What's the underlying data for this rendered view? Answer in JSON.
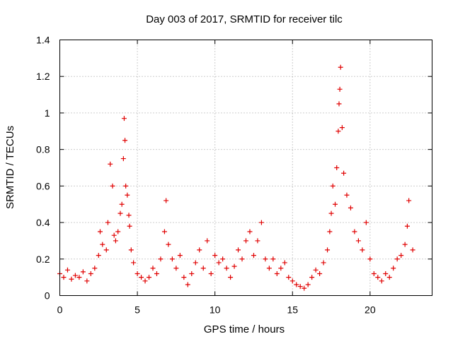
{
  "chart_data": {
    "type": "scatter",
    "title": "Day 003 of 2017, SRMTID for receiver tilc",
    "xlabel": "GPS time / hours",
    "ylabel": "SRMTID / TECUs",
    "xlim": [
      0,
      24
    ],
    "ylim": [
      0,
      1.4
    ],
    "xticks": [
      0,
      5,
      10,
      15,
      20
    ],
    "xtick_labels": [
      "0",
      "5",
      "10",
      "15",
      "20"
    ],
    "yticks": [
      0,
      0.2,
      0.4,
      0.6,
      0.8,
      1.0,
      1.2,
      1.4
    ],
    "ytick_labels": [
      "0",
      "0.2",
      "0.4",
      "0.6",
      "0.8",
      "1",
      "1.2",
      "1.4"
    ],
    "grid": true,
    "marker": "+",
    "series": [
      {
        "name": "SRMTID",
        "color": "#e00000",
        "x": [
          0.0,
          0.25,
          0.5,
          0.75,
          1.0,
          1.25,
          1.5,
          1.75,
          2.0,
          2.25,
          2.5,
          2.6,
          2.75,
          3.0,
          3.1,
          3.25,
          3.4,
          3.5,
          3.6,
          3.75,
          3.9,
          4.0,
          4.1,
          4.15,
          4.2,
          4.25,
          4.35,
          4.45,
          4.5,
          4.6,
          4.75,
          5.0,
          5.25,
          5.5,
          5.75,
          6.0,
          6.25,
          6.5,
          6.75,
          6.85,
          7.0,
          7.25,
          7.5,
          7.75,
          8.0,
          8.25,
          8.5,
          8.75,
          9.0,
          9.25,
          9.5,
          9.75,
          10.0,
          10.25,
          10.5,
          10.75,
          11.0,
          11.25,
          11.5,
          11.75,
          12.0,
          12.25,
          12.5,
          12.75,
          13.0,
          13.25,
          13.5,
          13.75,
          14.0,
          14.25,
          14.5,
          14.75,
          15.0,
          15.25,
          15.5,
          15.75,
          16.0,
          16.25,
          16.5,
          16.75,
          17.0,
          17.25,
          17.4,
          17.5,
          17.6,
          17.75,
          17.85,
          17.95,
          18.0,
          18.05,
          18.1,
          18.2,
          18.3,
          18.5,
          18.75,
          19.0,
          19.25,
          19.5,
          19.75,
          20.0,
          20.25,
          20.5,
          20.75,
          21.0,
          21.25,
          21.5,
          21.75,
          22.0,
          22.25,
          22.4,
          22.5,
          22.75
        ],
        "y": [
          0.12,
          0.1,
          0.14,
          0.09,
          0.11,
          0.1,
          0.13,
          0.08,
          0.12,
          0.15,
          0.22,
          0.35,
          0.28,
          0.25,
          0.4,
          0.72,
          0.6,
          0.33,
          0.3,
          0.35,
          0.45,
          0.5,
          0.75,
          0.97,
          0.85,
          0.6,
          0.55,
          0.44,
          0.38,
          0.25,
          0.18,
          0.12,
          0.1,
          0.08,
          0.1,
          0.15,
          0.12,
          0.2,
          0.35,
          0.52,
          0.28,
          0.2,
          0.15,
          0.22,
          0.1,
          0.06,
          0.12,
          0.18,
          0.25,
          0.15,
          0.3,
          0.12,
          0.22,
          0.18,
          0.2,
          0.15,
          0.1,
          0.16,
          0.25,
          0.2,
          0.3,
          0.35,
          0.22,
          0.3,
          0.4,
          0.2,
          0.15,
          0.2,
          0.12,
          0.15,
          0.18,
          0.1,
          0.08,
          0.06,
          0.05,
          0.04,
          0.06,
          0.1,
          0.14,
          0.12,
          0.18,
          0.25,
          0.35,
          0.45,
          0.6,
          0.5,
          0.7,
          0.9,
          1.05,
          1.13,
          1.25,
          0.92,
          0.67,
          0.55,
          0.48,
          0.35,
          0.3,
          0.25,
          0.4,
          0.2,
          0.12,
          0.1,
          0.08,
          0.12,
          0.1,
          0.15,
          0.2,
          0.22,
          0.28,
          0.38,
          0.52,
          0.25
        ]
      }
    ]
  }
}
